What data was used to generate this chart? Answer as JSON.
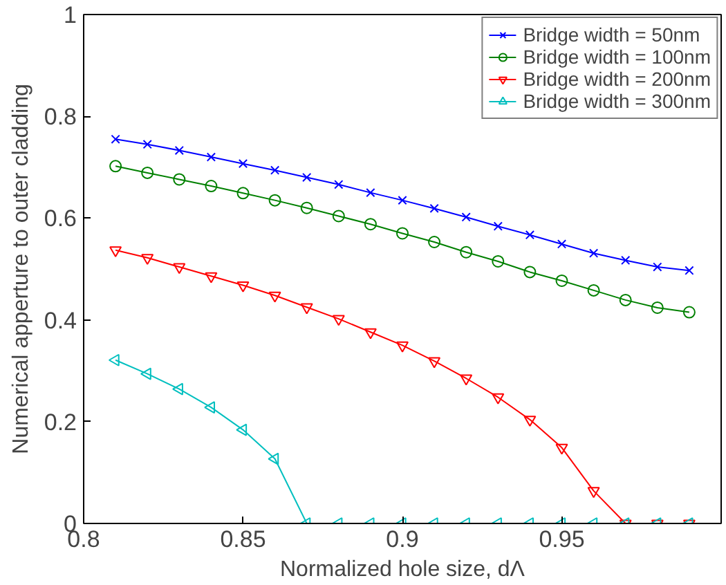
{
  "chart_data": {
    "type": "line",
    "xlabel": "Normalized hole size, dΛ",
    "ylabel": "Numerical apperture to outer cladding",
    "x": [
      0.81,
      0.82,
      0.83,
      0.84,
      0.85,
      0.86,
      0.87,
      0.88,
      0.89,
      0.9,
      0.91,
      0.92,
      0.93,
      0.94,
      0.95,
      0.96,
      0.97,
      0.98,
      0.99
    ],
    "series": [
      {
        "name": "Bridge width = 50nm",
        "color": "#0000ff",
        "marker": "x",
        "values": [
          0.755,
          0.745,
          0.733,
          0.72,
          0.707,
          0.694,
          0.68,
          0.666,
          0.65,
          0.635,
          0.619,
          0.602,
          0.584,
          0.567,
          0.549,
          0.531,
          0.517,
          0.504,
          0.497
        ]
      },
      {
        "name": "Bridge width = 100nm",
        "color": "#008000",
        "marker": "circle",
        "values": [
          0.702,
          0.689,
          0.676,
          0.663,
          0.649,
          0.635,
          0.62,
          0.604,
          0.588,
          0.57,
          0.553,
          0.533,
          0.515,
          0.494,
          0.477,
          0.458,
          0.439,
          0.424,
          0.415
        ]
      },
      {
        "name": "Bridge width = 200nm",
        "color": "#ff0000",
        "marker": "triangle_down",
        "values": [
          0.537,
          0.522,
          0.504,
          0.486,
          0.468,
          0.448,
          0.425,
          0.402,
          0.376,
          0.35,
          0.319,
          0.285,
          0.248,
          0.204,
          0.149,
          0.064,
          0,
          0,
          0
        ]
      },
      {
        "name": "Bridge width = 300nm",
        "color": "#00bfbf",
        "marker": "triangle_left",
        "values": [
          0.321,
          0.294,
          0.264,
          0.228,
          0.184,
          0.127,
          0,
          0,
          0,
          0,
          0,
          0,
          0,
          0,
          0,
          0,
          0,
          0,
          0
        ]
      }
    ],
    "xlim": [
      0.8,
      1
    ],
    "xticks": [
      0.8,
      0.85,
      0.9,
      0.95
    ],
    "ylim": [
      0,
      1
    ],
    "yticks": [
      0,
      0.2,
      0.4,
      0.6,
      0.8,
      1
    ],
    "grid": false,
    "legend": "top right",
    "line_style": "solid"
  }
}
